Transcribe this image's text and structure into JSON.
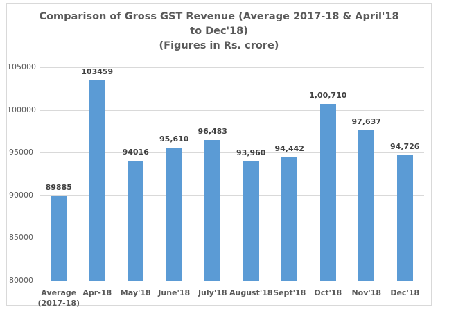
{
  "chart_data": {
    "type": "bar",
    "title": "Comparison of Gross GST Revenue (Average 2017-18 & April'18 to Dec'18)",
    "title_lines": [
      "Comparison of Gross GST Revenue (Average 2017-18 & April'18",
      "to Dec'18)"
    ],
    "subtitle": "(Figures in Rs. crore)",
    "categories": [
      "Average (2017-18)",
      "Apr-18",
      "May'18",
      "June'18",
      "July'18",
      "August'18",
      "Sept'18",
      "Oct'18",
      "Nov'18",
      "Dec'18"
    ],
    "category_label_lines": [
      [
        "Average",
        "(2017-18)"
      ],
      [
        "Apr-18"
      ],
      [
        "May'18"
      ],
      [
        "June'18"
      ],
      [
        "July'18"
      ],
      [
        "August'18"
      ],
      [
        "Sept'18"
      ],
      [
        "Oct'18"
      ],
      [
        "Nov'18"
      ],
      [
        "Dec'18"
      ]
    ],
    "values": [
      89885,
      103459,
      94016,
      95610,
      96483,
      93960,
      94442,
      100710,
      97637,
      94726
    ],
    "data_labels": [
      "89885",
      "103459",
      "94016",
      "95,610",
      "96,483",
      "93,960",
      "94,442",
      "1,00,710",
      "97,637",
      "94,726"
    ],
    "xlabel": "",
    "ylabel": "",
    "ylim": [
      80000,
      105000
    ],
    "y_ticks": [
      105000,
      100000,
      95000,
      90000,
      85000,
      80000
    ],
    "y_tick_labels": [
      "105000",
      "100000",
      "95000",
      "90000",
      "85000",
      "80000"
    ],
    "grid": true,
    "legend": "none",
    "colors": {
      "bar": "#5B9BD5",
      "gridline": "#D9D9D9",
      "baseline": "#BFBFBF",
      "title_text": "#595959",
      "axis_text": "#595959",
      "data_label_text": "#404040",
      "frame_border": "#D9D9D9",
      "background": "#FFFFFF"
    }
  }
}
